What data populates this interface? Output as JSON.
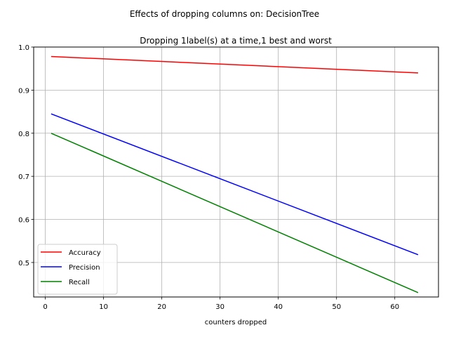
{
  "figure": {
    "suptitle": "Effects of dropping columns on: DecisionTree"
  },
  "chart_data": {
    "type": "line",
    "title": "Dropping 1label(s) at a time,1 best and worst",
    "xlabel": "counters dropped",
    "ylabel": "",
    "xlim": [
      -2,
      67.5
    ],
    "ylim": [
      0.42,
      1.0
    ],
    "xticks": [
      0,
      10,
      20,
      30,
      40,
      50,
      60
    ],
    "yticks": [
      0.5,
      0.6,
      0.7,
      0.8,
      0.9,
      1.0
    ],
    "ytick_labels": [
      "0.5",
      "0.6",
      "0.7",
      "0.8",
      "0.9",
      "1.0"
    ],
    "grid": true,
    "legend_position": "lower-left",
    "series": [
      {
        "name": "Accuracy",
        "color": "#ff0000",
        "x": [
          1,
          64
        ],
        "y": [
          0.978,
          0.94
        ]
      },
      {
        "name": "Precision",
        "color": "#0000ff",
        "x": [
          1,
          64
        ],
        "y": [
          0.845,
          0.518
        ]
      },
      {
        "name": "Recall",
        "color": "#008000",
        "x": [
          1,
          64
        ],
        "y": [
          0.8,
          0.43
        ]
      }
    ]
  }
}
